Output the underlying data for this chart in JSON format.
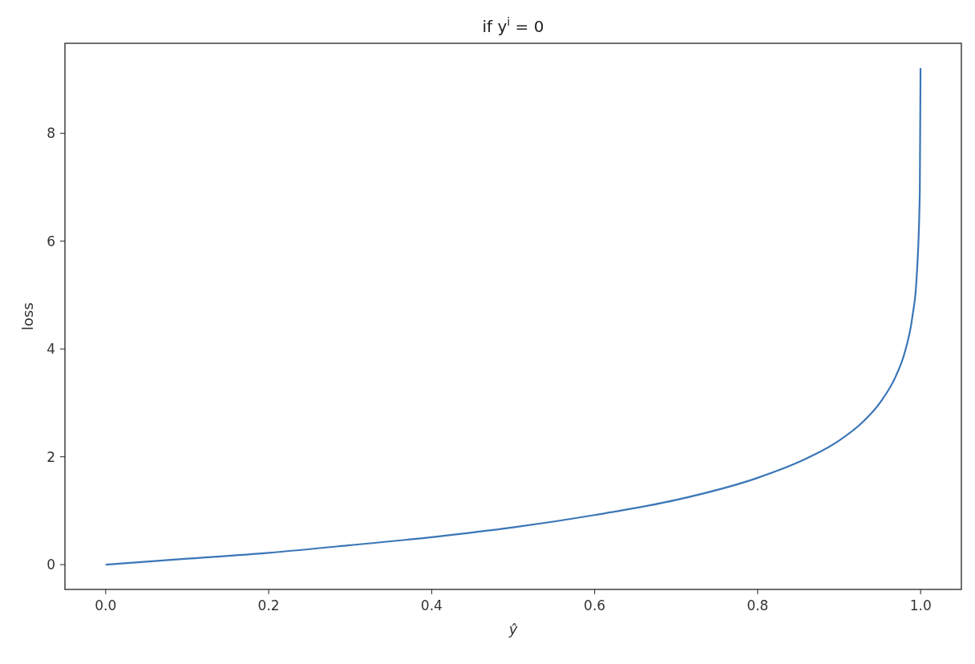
{
  "chart_data": {
    "type": "line",
    "title": "if y$^{i}$ = 0",
    "xlabel": "ŷ",
    "ylabel": "loss",
    "x": [
      0,
      0.1,
      0.2,
      0.3,
      0.4,
      0.5,
      0.6,
      0.7,
      0.8,
      0.85,
      0.9,
      0.93,
      0.95,
      0.97,
      0.98,
      0.99,
      0.995,
      0.999,
      0.9999
    ],
    "series": [
      {
        "color": "#3a76b7",
        "values": [
          0,
          0.11,
          0.22,
          0.36,
          0.51,
          0.69,
          0.92,
          1.2,
          1.61,
          1.9,
          2.3,
          2.66,
          3.0,
          3.51,
          3.91,
          4.61,
          5.3,
          6.91,
          9.21
        ]
      }
    ],
    "xlim": [
      -0.05,
      1.05
    ],
    "ylim": [
      -0.46,
      9.67
    ],
    "xticks": [
      {
        "value": 0,
        "label": "0.0"
      },
      0.2,
      0.4,
      0.6,
      0.8,
      {
        "value": 1,
        "label": "1.0"
      }
    ],
    "yticks": [
      0,
      2,
      4,
      6,
      8
    ],
    "grid": false
  }
}
